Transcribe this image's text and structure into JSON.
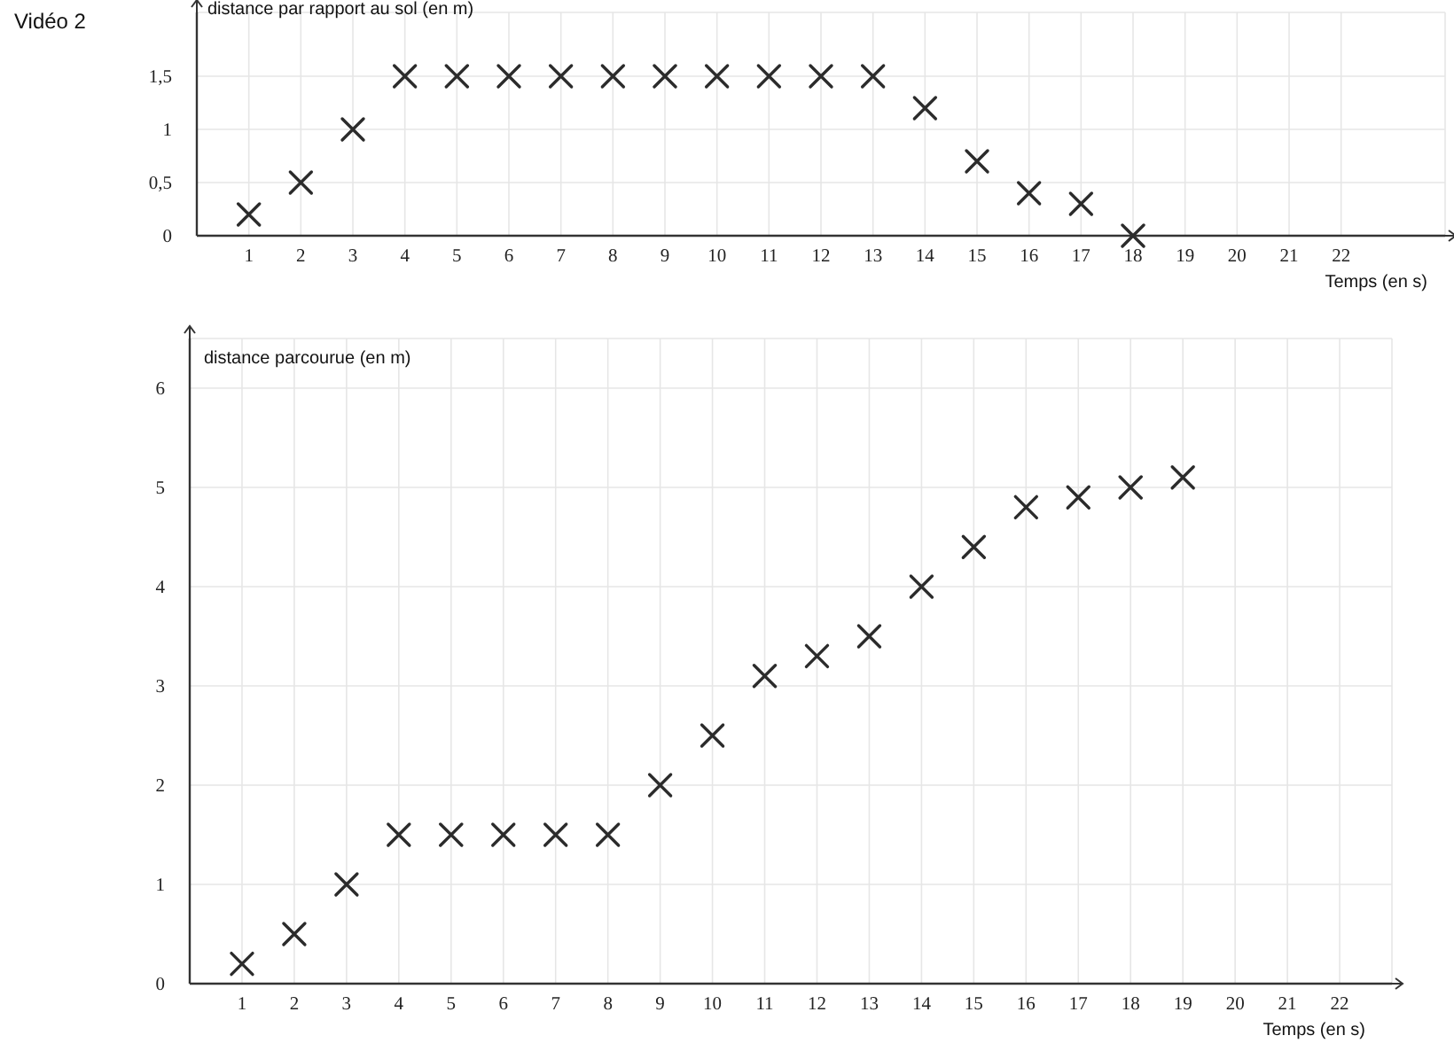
{
  "chart_data": [
    {
      "type": "scatter",
      "title": "Vidéo 2",
      "ylabel": "distance par rapport au sol (en m)",
      "xlabel": "Temps (en s)",
      "x": [
        1,
        2,
        3,
        4,
        5,
        6,
        7,
        8,
        9,
        10,
        11,
        12,
        13,
        14,
        15,
        16,
        17,
        18
      ],
      "values": [
        0.2,
        0.5,
        1,
        1.5,
        1.5,
        1.5,
        1.5,
        1.5,
        1.5,
        1.5,
        1.5,
        1.5,
        1.5,
        1.2,
        0.7,
        0.4,
        0.3,
        0
      ],
      "color": "#2b2b2b",
      "marker": "cross",
      "xlim": [
        0,
        24
      ],
      "xticks": [
        1,
        2,
        3,
        4,
        5,
        6,
        7,
        8,
        9,
        10,
        11,
        12,
        13,
        14,
        15,
        16,
        17,
        18,
        19,
        20,
        21,
        22
      ],
      "ylim": [
        0,
        2.1
      ],
      "yticks": [
        0,
        {
          "value": 0.5,
          "label": "0,5"
        },
        1,
        {
          "value": 1.5,
          "label": "1,5"
        }
      ],
      "grid": true
    },
    {
      "type": "scatter",
      "ylabel": "distance parcourue (en m)",
      "xlabel": "Temps (en s)",
      "x": [
        1,
        2,
        3,
        4,
        5,
        6,
        7,
        8,
        9,
        10,
        11,
        12,
        13,
        14,
        15,
        16,
        17,
        18,
        19
      ],
      "values": [
        0.2,
        0.5,
        1,
        1.5,
        1.5,
        1.5,
        1.5,
        1.5,
        2,
        2.5,
        3.1,
        3.3,
        3.5,
        4,
        4.4,
        4.8,
        4.9,
        5,
        5.1
      ],
      "color": "#2b2b2b",
      "marker": "cross",
      "xlim": [
        0,
        23
      ],
      "xticks": [
        1,
        2,
        3,
        4,
        5,
        6,
        7,
        8,
        9,
        10,
        11,
        12,
        13,
        14,
        15,
        16,
        17,
        18,
        19,
        20,
        21,
        22
      ],
      "ylim": [
        0,
        6.5
      ],
      "yticks": [
        0,
        1,
        2,
        3,
        4,
        5,
        6
      ],
      "grid": true
    }
  ]
}
